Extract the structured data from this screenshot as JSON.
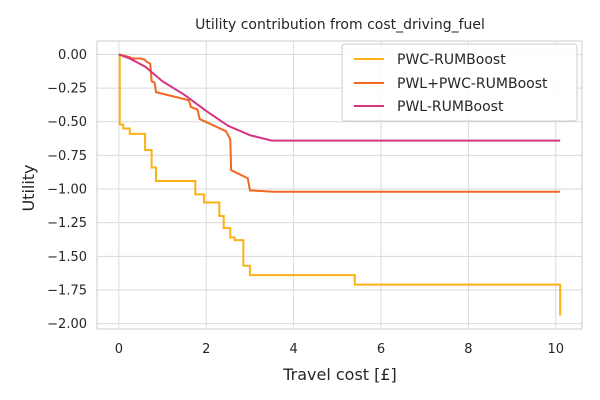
{
  "chart_data": {
    "type": "line",
    "title": "Utility contribution from cost_driving_fuel",
    "xlabel": "Travel cost [£]",
    "ylabel": "Utility",
    "xlim": [
      -0.5,
      10.6
    ],
    "ylim": [
      -2.04,
      0.1
    ],
    "xticks": [
      0,
      2,
      4,
      6,
      8,
      10
    ],
    "xtick_labels": [
      "0",
      "2",
      "4",
      "6",
      "8",
      "10"
    ],
    "yticks": [
      0.0,
      -0.25,
      -0.5,
      -0.75,
      -1.0,
      -1.25,
      -1.5,
      -1.75,
      -2.0
    ],
    "ytick_labels": [
      "0.00",
      "−0.25",
      "−0.50",
      "−0.75",
      "−1.00",
      "−1.25",
      "−1.50",
      "−1.75",
      "−2.00"
    ],
    "grid": true,
    "legend_position": "top-right",
    "series": [
      {
        "name": "PWC-RUMBoost",
        "color": "#fbb117",
        "style": "step",
        "x": [
          0,
          0.02,
          0.1,
          0.25,
          0.6,
          0.75,
          0.85,
          1.75,
          1.95,
          2.3,
          2.4,
          2.55,
          2.65,
          2.85,
          3.0,
          5.4,
          10.1
        ],
        "y": [
          0.0,
          -0.52,
          -0.55,
          -0.59,
          -0.71,
          -0.84,
          -0.94,
          -1.04,
          -1.1,
          -1.2,
          -1.29,
          -1.36,
          -1.38,
          -1.57,
          -1.64,
          -1.71,
          -1.94
        ]
      },
      {
        "name": "PWL+PWC-RUMBoost",
        "color": "#f3671f",
        "style": "line",
        "x": [
          0,
          0.25,
          0.3,
          0.5,
          0.6,
          0.62,
          0.72,
          0.75,
          0.82,
          0.85,
          1.6,
          1.65,
          1.8,
          1.85,
          2.45,
          2.5,
          2.55,
          2.57,
          2.95,
          3.0,
          3.55,
          10.1
        ],
        "y": [
          0.0,
          -0.02,
          -0.03,
          -0.03,
          -0.04,
          -0.05,
          -0.07,
          -0.2,
          -0.21,
          -0.28,
          -0.34,
          -0.39,
          -0.41,
          -0.48,
          -0.57,
          -0.6,
          -0.63,
          -0.86,
          -0.92,
          -1.01,
          -1.02,
          -1.02
        ]
      },
      {
        "name": "PWL-RUMBoost",
        "color": "#d63384",
        "style": "line",
        "x": [
          0,
          0.25,
          0.6,
          1.0,
          1.5,
          2.0,
          2.5,
          3.0,
          3.5,
          10.1
        ],
        "y": [
          0.0,
          -0.03,
          -0.09,
          -0.2,
          -0.3,
          -0.42,
          -0.53,
          -0.6,
          -0.64,
          -0.64
        ]
      }
    ]
  }
}
